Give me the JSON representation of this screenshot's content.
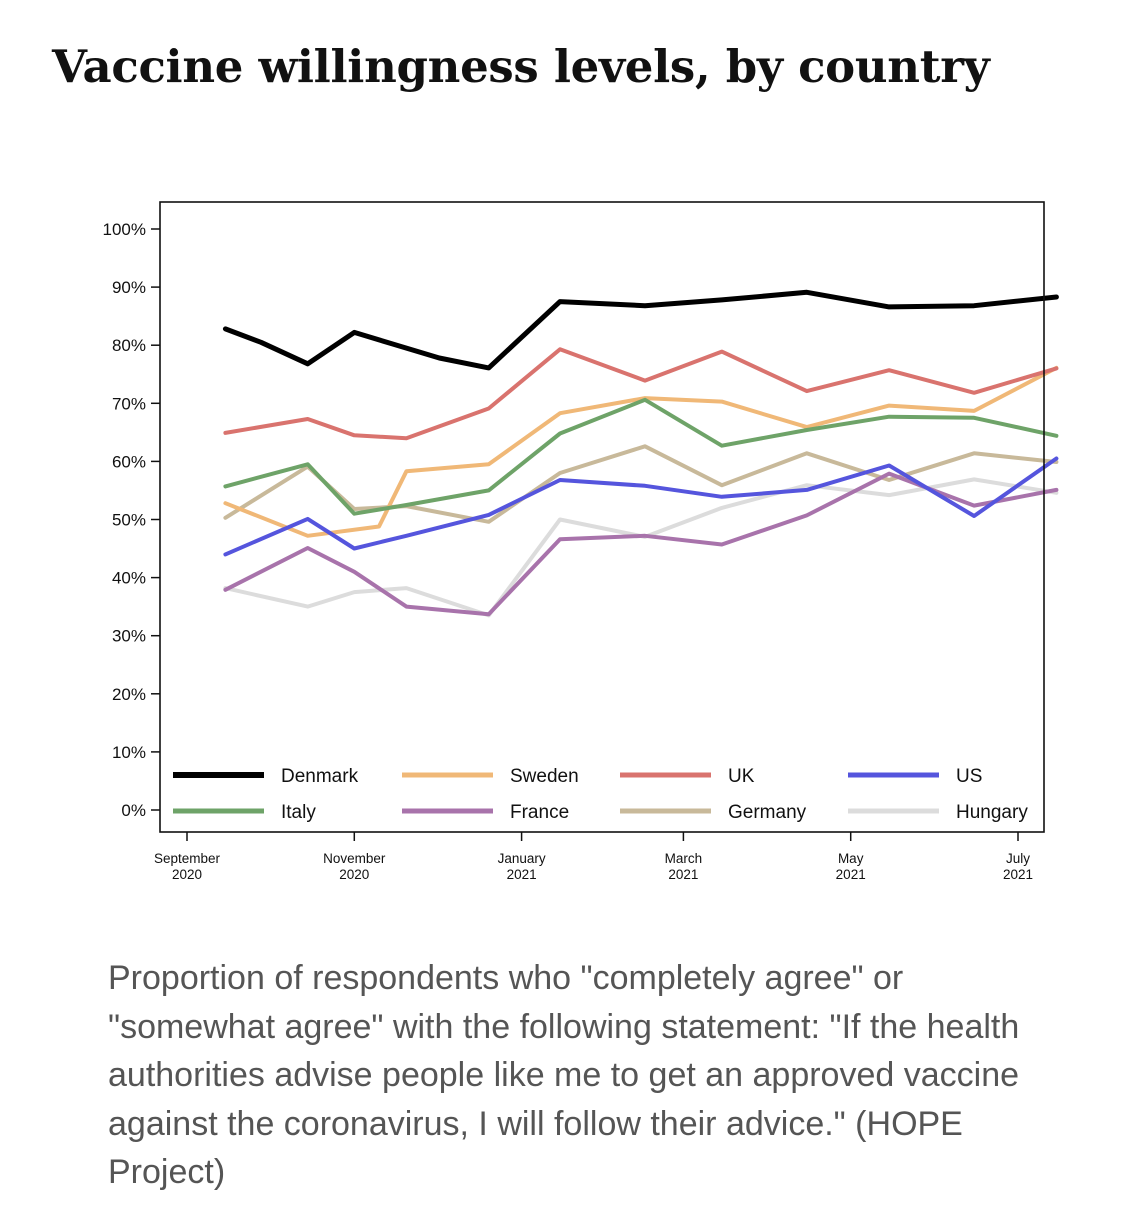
{
  "title": "Vaccine willingness levels, by country",
  "caption": "Proportion of respondents who \"completely agree\" or \"somewhat agree\" with the following statement: \"If the health authorities advise people like me to get an approved vaccine against the coronavirus, I will follow their advice.\" (HOPE Project)",
  "chart_data": {
    "type": "line",
    "title": "",
    "xlabel": "",
    "ylabel": "",
    "ylim": [
      0,
      100
    ],
    "xlim": [
      "2020-09",
      "2021-07"
    ],
    "y_ticks": [
      0,
      10,
      20,
      30,
      40,
      50,
      60,
      70,
      80,
      90,
      100
    ],
    "y_tick_labels": [
      "0%",
      "10%",
      "20%",
      "30%",
      "40%",
      "50%",
      "60%",
      "70%",
      "80%",
      "90%",
      "100%"
    ],
    "x_ticks": [
      {
        "date": "2020-09",
        "line1": "September",
        "line2": "2020"
      },
      {
        "date": "2020-11",
        "line1": "November",
        "line2": "2020"
      },
      {
        "date": "2021-01",
        "line1": "January",
        "line2": "2021"
      },
      {
        "date": "2021-03",
        "line1": "March",
        "line2": "2021"
      },
      {
        "date": "2021-05",
        "line1": "May",
        "line2": "2021"
      },
      {
        "date": "2021-07",
        "line1": "July",
        "line2": "2021"
      }
    ],
    "legend_position": "bottom-inside",
    "grid": false,
    "series": [
      {
        "name": "Denmark",
        "color": "#000000",
        "points": [
          [
            "2020-09-15",
            82.8
          ],
          [
            "2020-09-28",
            80.5
          ],
          [
            "2020-10-15",
            76.8
          ],
          [
            "2020-11-01",
            82.2
          ],
          [
            "2020-11-15",
            80.2
          ],
          [
            "2020-12-02",
            77.8
          ],
          [
            "2020-12-20",
            76.1
          ],
          [
            "2021-01-15",
            87.5
          ],
          [
            "2021-02-15",
            86.8
          ],
          [
            "2021-03-15",
            87.8
          ],
          [
            "2021-04-15",
            89.1
          ],
          [
            "2021-05-15",
            86.6
          ],
          [
            "2021-06-15",
            86.8
          ],
          [
            "2021-07-15",
            88.3
          ]
        ]
      },
      {
        "name": "Sweden",
        "color": "#f0b877",
        "points": [
          [
            "2020-09-15",
            52.8
          ],
          [
            "2020-10-15",
            47.2
          ],
          [
            "2020-11-10",
            48.8
          ],
          [
            "2020-11-20",
            58.3
          ],
          [
            "2020-12-20",
            59.5
          ],
          [
            "2021-01-15",
            68.3
          ],
          [
            "2021-02-15",
            70.9
          ],
          [
            "2021-03-15",
            70.3
          ],
          [
            "2021-04-15",
            65.9
          ],
          [
            "2021-05-15",
            69.6
          ],
          [
            "2021-06-15",
            68.7
          ],
          [
            "2021-07-15",
            76.1
          ]
        ]
      },
      {
        "name": "UK",
        "color": "#d9736e",
        "points": [
          [
            "2020-09-15",
            64.9
          ],
          [
            "2020-10-15",
            67.3
          ],
          [
            "2020-11-01",
            64.5
          ],
          [
            "2020-11-20",
            64.0
          ],
          [
            "2020-12-20",
            69.1
          ],
          [
            "2021-01-15",
            79.3
          ],
          [
            "2021-02-15",
            73.9
          ],
          [
            "2021-03-15",
            78.9
          ],
          [
            "2021-04-15",
            72.1
          ],
          [
            "2021-05-15",
            75.7
          ],
          [
            "2021-06-15",
            71.8
          ],
          [
            "2021-07-15",
            76.0
          ]
        ]
      },
      {
        "name": "US",
        "color": "#5555dd",
        "points": [
          [
            "2020-09-15",
            44.0
          ],
          [
            "2020-10-15",
            50.1
          ],
          [
            "2020-11-01",
            45.0
          ],
          [
            "2020-11-20",
            47.2
          ],
          [
            "2020-12-20",
            50.8
          ],
          [
            "2021-01-15",
            56.8
          ],
          [
            "2021-02-15",
            55.8
          ],
          [
            "2021-03-15",
            53.9
          ],
          [
            "2021-04-15",
            55.1
          ],
          [
            "2021-05-15",
            59.3
          ],
          [
            "2021-06-15",
            50.6
          ],
          [
            "2021-07-15",
            60.5
          ]
        ]
      },
      {
        "name": "Italy",
        "color": "#6ea368",
        "points": [
          [
            "2020-09-15",
            55.7
          ],
          [
            "2020-10-15",
            59.5
          ],
          [
            "2020-11-01",
            51.0
          ],
          [
            "2020-11-20",
            52.5
          ],
          [
            "2020-12-20",
            55.0
          ],
          [
            "2021-01-15",
            64.8
          ],
          [
            "2021-02-15",
            70.6
          ],
          [
            "2021-03-15",
            62.7
          ],
          [
            "2021-04-15",
            65.4
          ],
          [
            "2021-05-15",
            67.7
          ],
          [
            "2021-06-15",
            67.5
          ],
          [
            "2021-07-15",
            64.4
          ]
        ]
      },
      {
        "name": "France",
        "color": "#a873ab",
        "points": [
          [
            "2020-09-15",
            37.9
          ],
          [
            "2020-10-15",
            45.1
          ],
          [
            "2020-11-01",
            41.0
          ],
          [
            "2020-11-20",
            35.0
          ],
          [
            "2020-12-20",
            33.7
          ],
          [
            "2021-01-15",
            46.6
          ],
          [
            "2021-02-15",
            47.2
          ],
          [
            "2021-03-15",
            45.7
          ],
          [
            "2021-04-15",
            50.7
          ],
          [
            "2021-05-15",
            57.9
          ],
          [
            "2021-06-15",
            52.4
          ],
          [
            "2021-07-15",
            55.1
          ]
        ]
      },
      {
        "name": "Germany",
        "color": "#c8b99a",
        "points": [
          [
            "2020-09-15",
            50.3
          ],
          [
            "2020-10-15",
            59.1
          ],
          [
            "2020-11-01",
            51.8
          ],
          [
            "2020-11-20",
            52.3
          ],
          [
            "2020-12-20",
            49.6
          ],
          [
            "2021-01-15",
            58.0
          ],
          [
            "2021-02-15",
            62.6
          ],
          [
            "2021-03-15",
            55.9
          ],
          [
            "2021-04-15",
            61.4
          ],
          [
            "2021-05-15",
            56.8
          ],
          [
            "2021-06-15",
            61.4
          ],
          [
            "2021-07-15",
            59.9
          ]
        ]
      },
      {
        "name": "Hungary",
        "color": "#dcdcdc",
        "points": [
          [
            "2020-09-15",
            38.2
          ],
          [
            "2020-10-15",
            35.0
          ],
          [
            "2020-11-01",
            37.5
          ],
          [
            "2020-11-20",
            38.2
          ],
          [
            "2020-12-20",
            33.5
          ],
          [
            "2021-01-15",
            50.0
          ],
          [
            "2021-02-15",
            47.0
          ],
          [
            "2021-03-15",
            52.0
          ],
          [
            "2021-04-15",
            55.9
          ],
          [
            "2021-05-15",
            54.2
          ],
          [
            "2021-06-15",
            56.9
          ],
          [
            "2021-07-15",
            54.6
          ]
        ]
      }
    ]
  }
}
